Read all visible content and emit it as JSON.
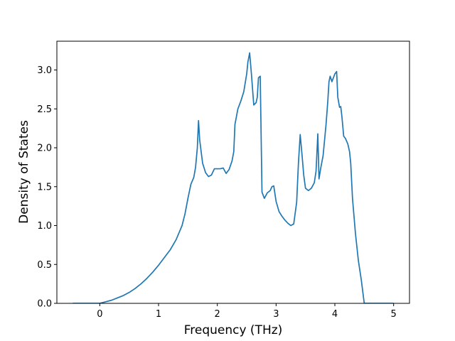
{
  "chart_data": {
    "type": "line",
    "title": "",
    "xlabel": "Frequency (THz)",
    "ylabel": "Density of States",
    "xlim": [
      -0.73,
      5.27
    ],
    "ylim": [
      0.0,
      3.37
    ],
    "xticks": [
      0,
      1,
      2,
      3,
      4,
      5
    ],
    "yticks": [
      0.0,
      0.5,
      1.0,
      1.5,
      2.0,
      2.5,
      3.0
    ],
    "xtick_labels": [
      "0",
      "1",
      "2",
      "3",
      "4",
      "5"
    ],
    "ytick_labels": [
      "0.0",
      "0.5",
      "1.0",
      "1.5",
      "2.0",
      "2.5",
      "3.0"
    ],
    "grid": false,
    "legend": "none",
    "series": [
      {
        "color": "#1f77b4",
        "x": [
          -0.46,
          -0.2,
          0.0,
          0.1,
          0.2,
          0.3,
          0.4,
          0.5,
          0.6,
          0.7,
          0.8,
          0.9,
          1.0,
          1.1,
          1.2,
          1.3,
          1.4,
          1.45,
          1.5,
          1.55,
          1.6,
          1.63,
          1.66,
          1.68,
          1.7,
          1.75,
          1.8,
          1.85,
          1.9,
          1.95,
          2.0,
          2.05,
          2.1,
          2.15,
          2.2,
          2.25,
          2.28,
          2.3,
          2.35,
          2.4,
          2.45,
          2.5,
          2.52,
          2.55,
          2.58,
          2.62,
          2.66,
          2.68,
          2.7,
          2.73,
          2.76,
          2.8,
          2.85,
          2.9,
          2.93,
          2.96,
          3.0,
          3.05,
          3.1,
          3.15,
          3.2,
          3.25,
          3.3,
          3.35,
          3.38,
          3.41,
          3.44,
          3.47,
          3.5,
          3.55,
          3.6,
          3.65,
          3.68,
          3.71,
          3.73,
          3.76,
          3.8,
          3.85,
          3.88,
          3.9,
          3.92,
          3.95,
          4.0,
          4.03,
          4.05,
          4.08,
          4.1,
          4.12,
          4.15,
          4.18,
          4.22,
          4.25,
          4.27,
          4.3,
          4.35,
          4.4,
          4.45,
          4.5,
          4.55,
          4.6,
          5.0
        ],
        "y": [
          0.0,
          0.0,
          0.0,
          0.02,
          0.04,
          0.07,
          0.1,
          0.14,
          0.19,
          0.25,
          0.32,
          0.4,
          0.49,
          0.59,
          0.69,
          0.82,
          1.0,
          1.15,
          1.35,
          1.53,
          1.62,
          1.75,
          2.0,
          2.35,
          2.1,
          1.8,
          1.68,
          1.63,
          1.65,
          1.73,
          1.73,
          1.73,
          1.74,
          1.67,
          1.72,
          1.83,
          1.95,
          2.3,
          2.5,
          2.6,
          2.72,
          2.95,
          3.1,
          3.22,
          2.95,
          2.55,
          2.58,
          2.65,
          2.9,
          2.92,
          1.43,
          1.35,
          1.42,
          1.45,
          1.5,
          1.51,
          1.31,
          1.18,
          1.12,
          1.07,
          1.03,
          1.0,
          1.02,
          1.3,
          1.8,
          2.17,
          1.92,
          1.65,
          1.48,
          1.45,
          1.48,
          1.55,
          1.7,
          2.18,
          1.6,
          1.74,
          1.9,
          2.3,
          2.6,
          2.85,
          2.92,
          2.85,
          2.95,
          2.98,
          2.65,
          2.52,
          2.53,
          2.4,
          2.15,
          2.12,
          2.05,
          1.95,
          1.8,
          1.35,
          0.9,
          0.55,
          0.3,
          0.0,
          0.0,
          0.0,
          0.0
        ]
      }
    ]
  }
}
